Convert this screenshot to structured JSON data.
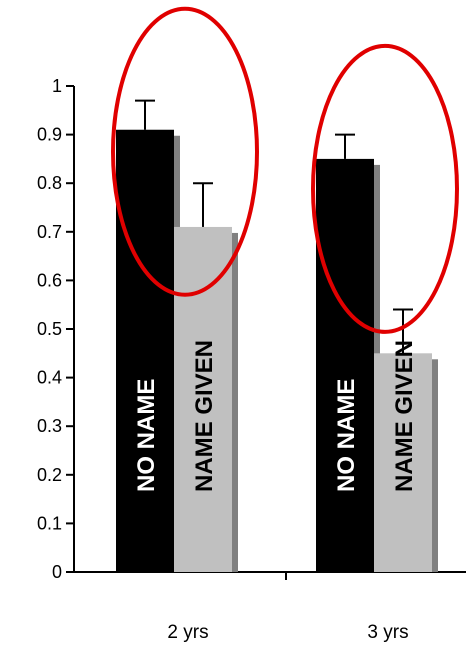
{
  "chart_data": {
    "type": "bar",
    "categories": [
      "2 yrs",
      "3 yrs"
    ],
    "series": [
      {
        "label_on_bar": "NO NAME",
        "values": [
          0.91,
          0.85
        ],
        "error": [
          0.06,
          0.05
        ],
        "color": "#000000",
        "label_color": "#ffffff"
      },
      {
        "label_on_bar": "NAME GIVEN",
        "values": [
          0.71,
          0.45
        ],
        "error": [
          0.09,
          0.09
        ],
        "color": "#c0c0c0",
        "label_color": "#000000"
      }
    ],
    "ylim": [
      0,
      1
    ],
    "yticks": [
      "0",
      "0.1",
      "0.2",
      "0.3",
      "0.4",
      "0.5",
      "0.6",
      "0.7",
      "0.8",
      "0.9",
      "1"
    ],
    "shadow_color": "#808080",
    "highlight_color": "#e00000",
    "grid": false,
    "legend": "none"
  }
}
